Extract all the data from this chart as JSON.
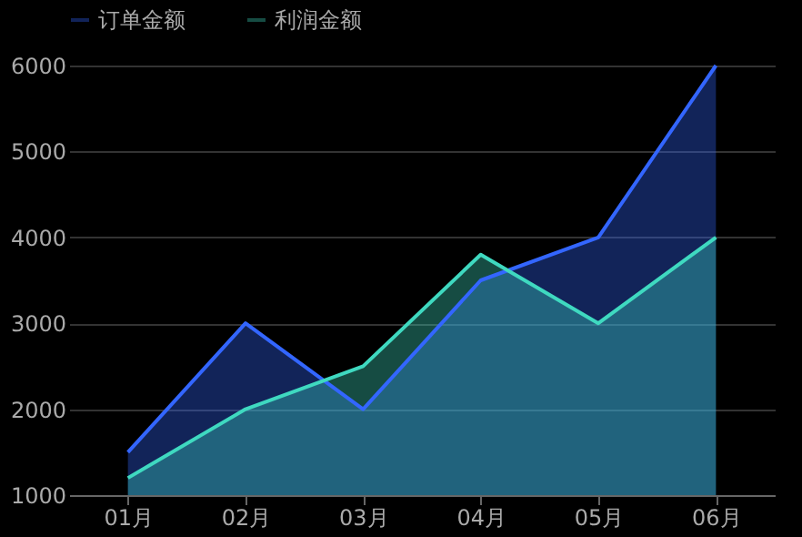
{
  "chart_data": {
    "type": "area",
    "categories": [
      "01月",
      "02月",
      "03月",
      "04月",
      "05月",
      "06月"
    ],
    "series": [
      {
        "name": "订单金额",
        "color": "#3366ff",
        "values": [
          1500,
          3000,
          2000,
          3500,
          4000,
          6000
        ]
      },
      {
        "name": "利润金额",
        "color": "#3fd9c0",
        "values": [
          1200,
          2000,
          2500,
          3800,
          3000,
          4000
        ]
      }
    ],
    "ylim": [
      1000,
      6000
    ],
    "yticks": [
      1000,
      2000,
      3000,
      4000,
      5000,
      6000
    ],
    "grid": "y",
    "legend": "top",
    "line_style": "solid"
  }
}
